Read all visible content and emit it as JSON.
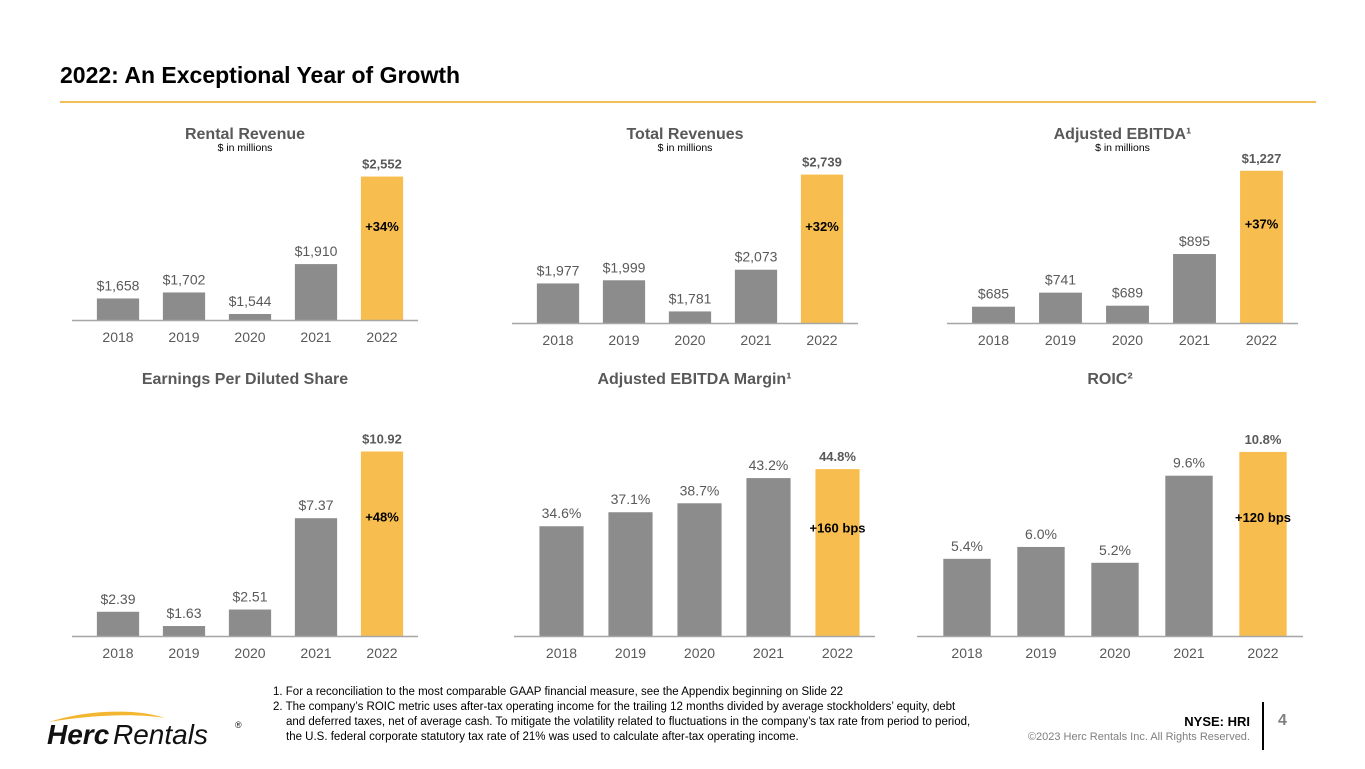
{
  "slide": {
    "title": "2022: An Exceptional Year of Growth",
    "footnotes": [
      "1. For a reconciliation to the most comparable GAAP financial measure, see the Appendix beginning on Slide 22",
      "2. The company’s ROIC metric uses after-tax operating income for the trailing 12 months divided by average stockholders’ equity, debt and deferred taxes, net of average cash. To mitigate the volatility related to fluctuations in the company’s tax rate from period to period, the U.S. federal corporate statutory tax rate of 21% was used to calculate after-tax operating income."
    ],
    "logo": {
      "bold": "Herc",
      "light": "Rentals",
      "mark": "®"
    },
    "ticker": "NYSE: HRI",
    "copyright": "©2023 Herc Rentals Inc.  All Rights Reserved.",
    "page_number": "4"
  },
  "colors": {
    "bar_gray": "#8c8c8c",
    "bar_highlight": "#f7be4f",
    "axis": "#a6a6a6",
    "title_text": "#595959",
    "label_text": "#595959",
    "accent_rule": "#f2c05a"
  },
  "chart_data": [
    {
      "type": "bar",
      "title": "Rental Revenue",
      "subtitle": "$ in millions",
      "categories": [
        "2018",
        "2019",
        "2020",
        "2021",
        "2022"
      ],
      "values": [
        1658,
        1702,
        1544,
        1910,
        2552
      ],
      "labels": [
        "$1,658",
        "$1,702",
        "$1,544",
        "$1,910",
        "$2,552"
      ],
      "highlight_index": 4,
      "annotation": "+34%",
      "ylim": [
        1500,
        2600
      ],
      "xlabel": "",
      "ylabel": ""
    },
    {
      "type": "bar",
      "title": "Total Revenues",
      "subtitle": "$ in millions",
      "categories": [
        "2018",
        "2019",
        "2020",
        "2021",
        "2022"
      ],
      "values": [
        1977,
        1999,
        1781,
        2073,
        2739
      ],
      "labels": [
        "$1,977",
        "$1,999",
        "$1,781",
        "$2,073",
        "$2,739"
      ],
      "highlight_index": 4,
      "annotation": "+32%",
      "ylim": [
        1700,
        2750
      ],
      "xlabel": "",
      "ylabel": ""
    },
    {
      "type": "bar",
      "title": "Adjusted EBITDA¹",
      "subtitle": "$ in millions",
      "categories": [
        "2018",
        "2019",
        "2020",
        "2021",
        "2022"
      ],
      "values": [
        685,
        741,
        689,
        895,
        1227
      ],
      "labels": [
        "$685",
        "$741",
        "$689",
        "$895",
        "$1,227"
      ],
      "highlight_index": 4,
      "annotation": "+37%",
      "ylim": [
        620,
        1230
      ],
      "xlabel": "",
      "ylabel": ""
    },
    {
      "type": "bar",
      "title": "Earnings Per Diluted Share",
      "subtitle": "",
      "categories": [
        "2018",
        "2019",
        "2020",
        "2021",
        "2022"
      ],
      "values": [
        2.39,
        1.63,
        2.51,
        7.37,
        10.92
      ],
      "labels": [
        "$2.39",
        "$1.63",
        "$2.51",
        "$7.37",
        "$10.92"
      ],
      "highlight_index": 4,
      "annotation": "+48%",
      "ylim": [
        1.1,
        11.0
      ],
      "xlabel": "",
      "ylabel": ""
    },
    {
      "type": "bar",
      "title": "Adjusted EBITDA Margin¹",
      "subtitle": "",
      "categories": [
        "2018",
        "2019",
        "2020",
        "2021",
        "2022"
      ],
      "values": [
        34.6,
        37.1,
        38.7,
        43.2,
        44.8
      ],
      "labels": [
        "34.6%",
        "37.1%",
        "38.7%",
        "43.2%",
        "44.8%"
      ],
      "highlight_index": 4,
      "annotation": "+160 bps",
      "ylim": [
        15,
        45
      ],
      "xlabel": "",
      "ylabel": ""
    },
    {
      "type": "bar",
      "title": "ROIC²",
      "subtitle": "",
      "categories": [
        "2018",
        "2019",
        "2020",
        "2021",
        "2022"
      ],
      "values": [
        5.4,
        6.0,
        5.2,
        9.6,
        10.8
      ],
      "labels": [
        "5.4%",
        "6.0%",
        "5.2%",
        "9.6%",
        "10.8%"
      ],
      "highlight_index": 4,
      "annotation": "+120 bps",
      "ylim": [
        1.5,
        11.0
      ],
      "xlabel": "",
      "ylabel": ""
    }
  ]
}
